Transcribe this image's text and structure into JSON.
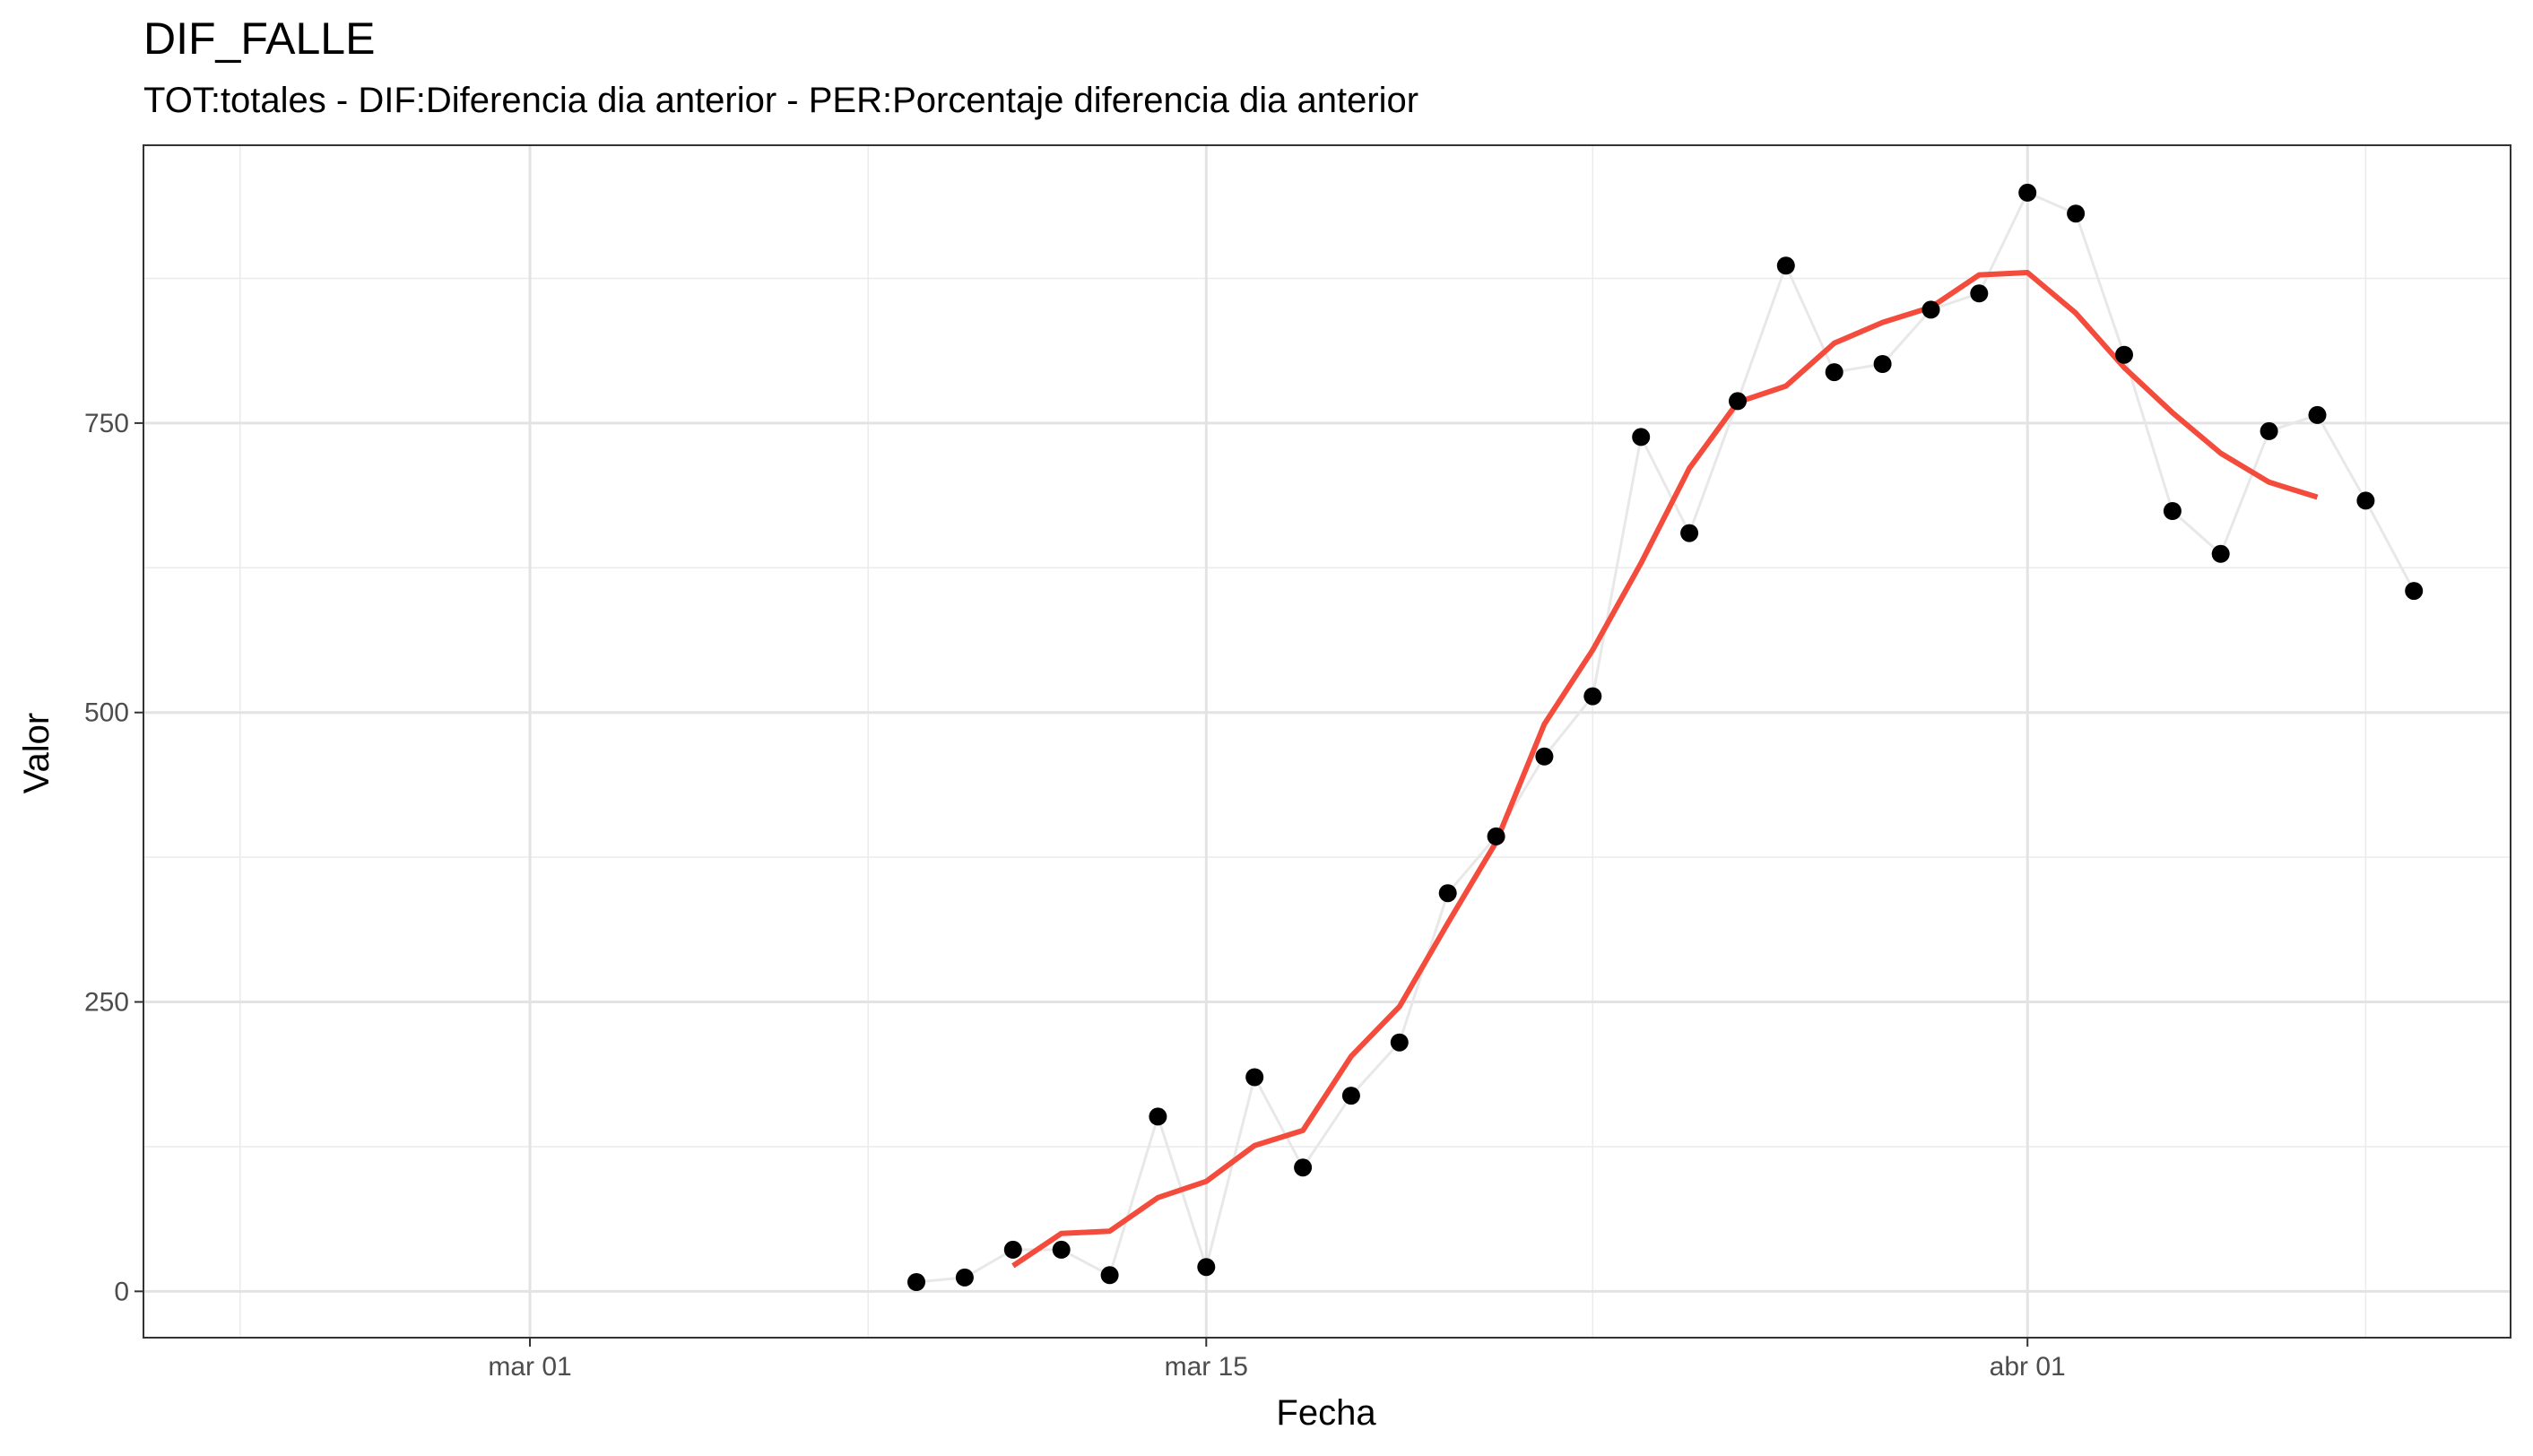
{
  "chart_data": {
    "type": "line",
    "title": "DIF_FALLE",
    "subtitle": "TOT:totales - DIF:Diferencia dia anterior - PER:Porcentaje diferencia dia anterior",
    "xlabel": "Fecha",
    "ylabel": "Valor",
    "x_ticks": [
      "mar 01",
      "mar 15",
      "abr 01"
    ],
    "y_ticks": [
      0,
      250,
      500,
      750
    ],
    "xlim": [
      "2020-02-22",
      "2020-04-11"
    ],
    "ylim": [
      -40,
      990
    ],
    "grid": true,
    "legend": "none",
    "series": [
      {
        "style": "points+line",
        "point_color": "#000000",
        "line_color": "#e8e8e8",
        "x": [
          "2020-03-09",
          "2020-03-10",
          "2020-03-11",
          "2020-03-12",
          "2020-03-13",
          "2020-03-14",
          "2020-03-15",
          "2020-03-16",
          "2020-03-17",
          "2020-03-18",
          "2020-03-19",
          "2020-03-20",
          "2020-03-21",
          "2020-03-22",
          "2020-03-23",
          "2020-03-24",
          "2020-03-25",
          "2020-03-26",
          "2020-03-27",
          "2020-03-28",
          "2020-03-29",
          "2020-03-30",
          "2020-03-31",
          "2020-04-01",
          "2020-04-02",
          "2020-04-03",
          "2020-04-04",
          "2020-04-05",
          "2020-04-06",
          "2020-04-07",
          "2020-04-08",
          "2020-04-09"
        ],
        "values": [
          8,
          12,
          36,
          36,
          14,
          151,
          21,
          185,
          107,
          169,
          215,
          344,
          393,
          462,
          514,
          738,
          655,
          769,
          886,
          794,
          801,
          848,
          862,
          949,
          931,
          809,
          674,
          637,
          743,
          757,
          683,
          605
        ]
      },
      {
        "style": "smooth-line",
        "line_color": "#f44c3c",
        "x": [
          "2020-03-11",
          "2020-03-12",
          "2020-03-13",
          "2020-03-14",
          "2020-03-15",
          "2020-03-16",
          "2020-03-17",
          "2020-03-18",
          "2020-03-19",
          "2020-03-20",
          "2020-03-21",
          "2020-03-22",
          "2020-03-23",
          "2020-03-24",
          "2020-03-25",
          "2020-03-26",
          "2020-03-27",
          "2020-03-28",
          "2020-03-29",
          "2020-03-30",
          "2020-03-31",
          "2020-04-01",
          "2020-04-02",
          "2020-04-03",
          "2020-04-04",
          "2020-04-05",
          "2020-04-06",
          "2020-04-07"
        ],
        "values": [
          22,
          50,
          52,
          81,
          95,
          126,
          139,
          203,
          246,
          318,
          388,
          490,
          554,
          629,
          711,
          768,
          782,
          819,
          837,
          850,
          878,
          880,
          845,
          798,
          759,
          724,
          699,
          686
        ]
      }
    ]
  }
}
